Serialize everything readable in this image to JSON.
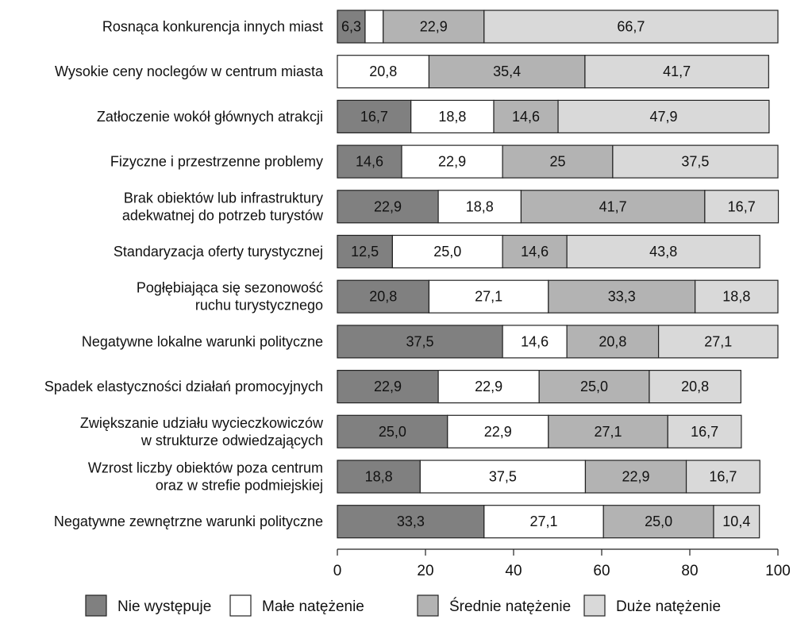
{
  "chart_data": {
    "type": "bar",
    "orientation": "horizontal",
    "stacked": true,
    "categories": [
      [
        "Rosnąca konkurencja innych miast"
      ],
      [
        "Wysokie ceny noclegów w centrum miasta"
      ],
      [
        "Zatłoczenie wokół głównych atrakcji"
      ],
      [
        "Fizyczne i przestrzenne problemy"
      ],
      [
        "Brak obiektów lub infrastruktury",
        "adekwatnej do potrzeb turystów"
      ],
      [
        "Standaryzacja oferty turystycznej"
      ],
      [
        "Pogłębiająca się sezonowość",
        "ruchu turystycznego"
      ],
      [
        "Negatywne lokalne warunki polityczne"
      ],
      [
        "Spadek elastyczności działań promocyjnych"
      ],
      [
        "Zwiększanie udziału wycieczkowiczów",
        "w strukturze odwiedzających"
      ],
      [
        "Wzrost liczby obiektów poza centrum",
        "oraz w strefie podmiejskiej"
      ],
      [
        "Negatywne zewnętrzne warunki polityczne"
      ]
    ],
    "series": [
      {
        "name": "Nie występuje",
        "color": "#808080",
        "values": [
          6.3,
          0,
          16.7,
          14.6,
          22.9,
          12.5,
          20.8,
          37.5,
          22.9,
          25.0,
          18.8,
          33.3
        ],
        "labels": [
          "6,3",
          "",
          "16,7",
          "14,6",
          "22,9",
          "12,5",
          "20,8",
          "37,5",
          "22,9",
          "25,0",
          "18,8",
          "33,3"
        ]
      },
      {
        "name": "Małe natężenie",
        "color": "#ffffff",
        "values": [
          4.1,
          20.8,
          18.8,
          22.9,
          18.8,
          25.0,
          27.1,
          14.6,
          22.9,
          22.9,
          37.5,
          27.1
        ],
        "labels": [
          "",
          "20,8",
          "18,8",
          "22,9",
          "18,8",
          "25,0",
          "27,1",
          "14,6",
          "22,9",
          "22,9",
          "37,5",
          "27,1"
        ]
      },
      {
        "name": "Średnie natężenie",
        "color": "#b3b3b3",
        "values": [
          22.9,
          35.4,
          14.6,
          25,
          41.7,
          14.6,
          33.3,
          20.8,
          25.0,
          27.1,
          22.9,
          25.0
        ],
        "labels": [
          "22,9",
          "35,4",
          "14,6",
          "25",
          "41,7",
          "14,6",
          "33,3",
          "20,8",
          "25,0",
          "27,1",
          "22,9",
          "25,0"
        ]
      },
      {
        "name": "Duże natężenie",
        "color": "#d9d9d9",
        "values": [
          66.7,
          41.7,
          47.9,
          37.5,
          16.7,
          43.8,
          18.8,
          27.1,
          20.8,
          16.7,
          16.7,
          10.4
        ],
        "labels": [
          "66,7",
          "41,7",
          "47,9",
          "37,5",
          "16,7",
          "43,8",
          "18,8",
          "27,1",
          "20,8",
          "16,7",
          "16,7",
          "10,4"
        ]
      }
    ],
    "xlim": [
      0,
      100
    ],
    "xticks": [
      0,
      20,
      40,
      60,
      80,
      100
    ],
    "title": "",
    "xlabel": "",
    "ylabel": "",
    "grid": false,
    "legend": "bottom"
  }
}
